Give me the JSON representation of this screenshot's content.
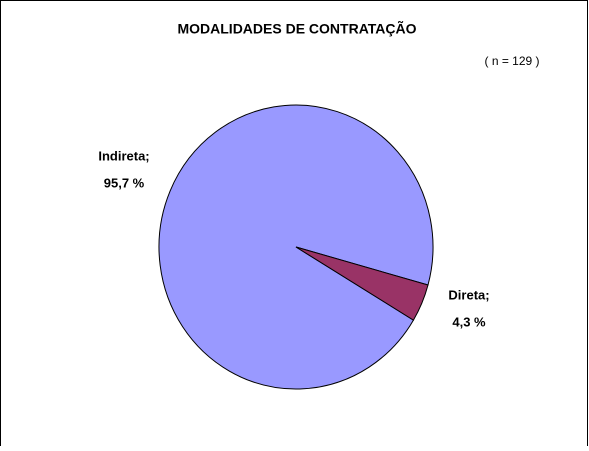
{
  "chart_data": {
    "type": "pie",
    "title": "MODALIDADES DE CONTRATAÇÃO",
    "subtitle": "( n = 129 )",
    "categories": [
      "Indireta;",
      "Direta;"
    ],
    "values": [
      95.7,
      4.3
    ],
    "value_labels": [
      "95,7 %",
      "4,3 %"
    ],
    "colors": [
      "#9999ff",
      "#993366"
    ]
  }
}
